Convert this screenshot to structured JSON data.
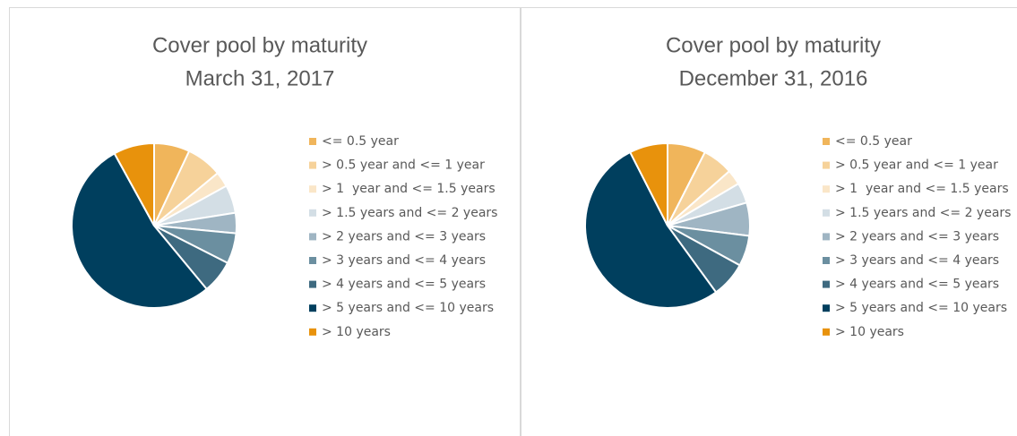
{
  "chart_data": [
    {
      "type": "pie",
      "title": "Cover pool by maturity",
      "subtitle": "March 31, 2017",
      "categories": [
        "<= 0.5 year",
        "> 0.5 year and <= 1 year",
        "> 1  year and <= 1.5 years",
        "> 1.5 years and <= 2 years",
        "> 2 years and <= 3 years",
        "> 3 years and <= 4 years",
        "> 4 years and <= 5 years",
        "> 5 years and <= 10 years",
        "> 10 years"
      ],
      "values": [
        7,
        7,
        3,
        5.5,
        4,
        6,
        6.5,
        53,
        8
      ],
      "colors": [
        "#f0b55b",
        "#f6d29a",
        "#fae6c8",
        "#d3dee5",
        "#9fb5c3",
        "#6b8fa0",
        "#3e6a80",
        "#003f5e",
        "#e8920c"
      ],
      "legend": "right"
    },
    {
      "type": "pie",
      "title": "Cover pool by maturity",
      "subtitle": "December 31, 2016",
      "categories": [
        "<= 0.5 year",
        "> 0.5 year and <= 1 year",
        "> 1  year and <= 1.5 years",
        "> 1.5 years and <= 2 years",
        "> 2 years and <= 3 years",
        "> 3 years and <= 4 years",
        "> 4 years and <= 5 years",
        "> 5 years and <= 10 years",
        "> 10 years"
      ],
      "values": [
        7.5,
        6,
        3,
        4,
        6.5,
        6,
        7,
        52.5,
        7.5
      ],
      "colors": [
        "#f0b55b",
        "#f6d29a",
        "#fae6c8",
        "#d3dee5",
        "#9fb5c3",
        "#6b8fa0",
        "#3e6a80",
        "#003f5e",
        "#e8920c"
      ],
      "legend": "right"
    }
  ]
}
